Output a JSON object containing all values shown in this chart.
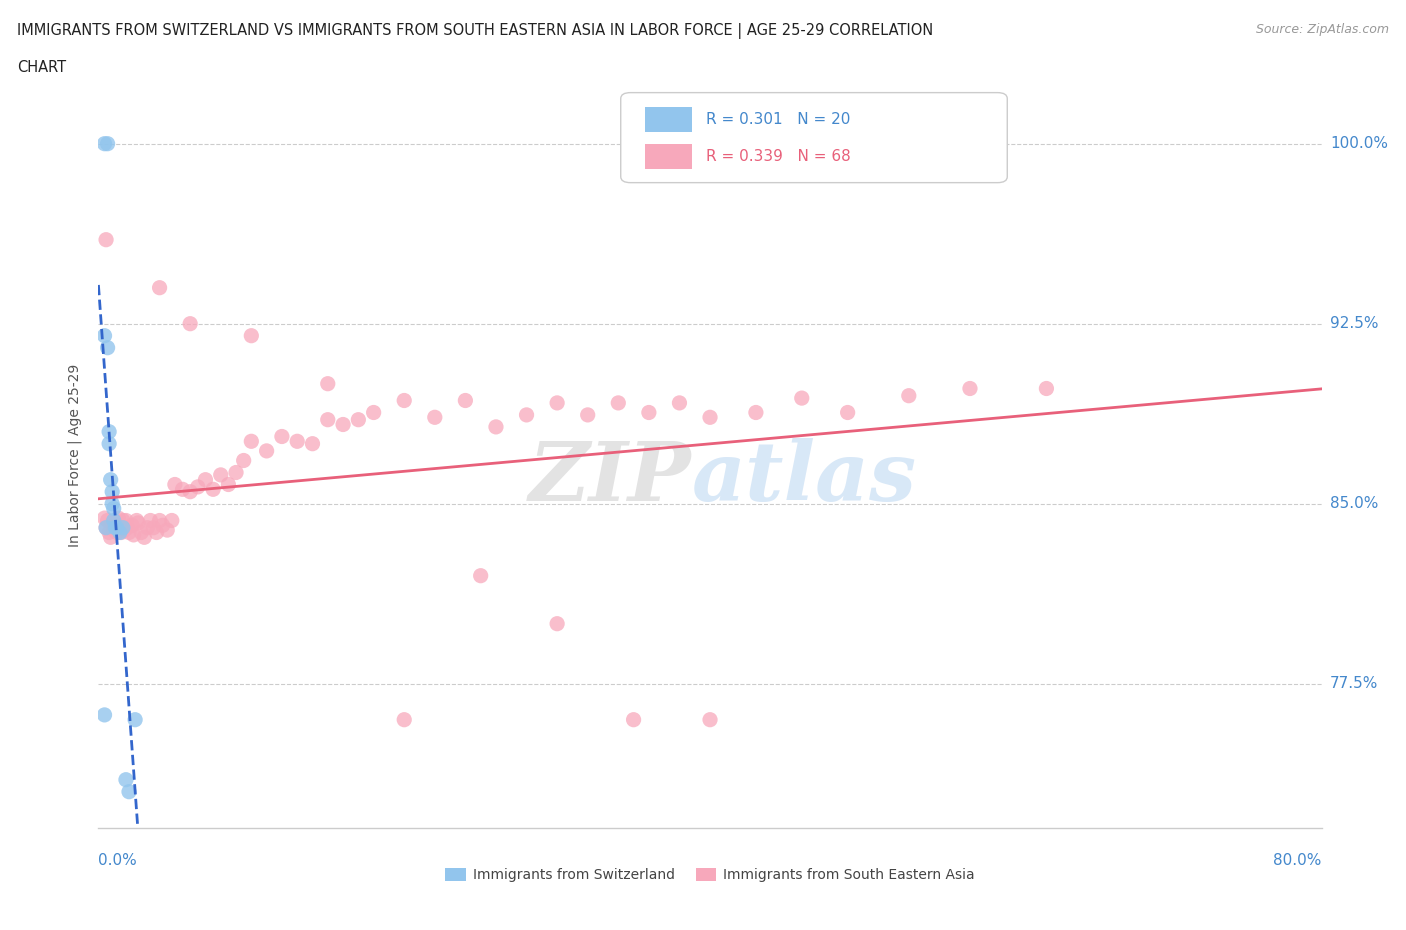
{
  "title_line1": "IMMIGRANTS FROM SWITZERLAND VS IMMIGRANTS FROM SOUTH EASTERN ASIA IN LABOR FORCE | AGE 25-29 CORRELATION",
  "title_line2": "CHART",
  "source_text": "Source: ZipAtlas.com",
  "xlabel_bottom_left": "0.0%",
  "xlabel_bottom_right": "80.0%",
  "ylabel_label": "In Labor Force | Age 25-29",
  "ytick_labels": [
    "100.0%",
    "92.5%",
    "85.0%",
    "77.5%"
  ],
  "ytick_values": [
    1.0,
    0.925,
    0.85,
    0.775
  ],
  "xmin": 0.0,
  "xmax": 0.8,
  "ymin": 0.715,
  "ymax": 1.025,
  "color_switzerland": "#92C5ED",
  "color_sea": "#F7A8BB",
  "color_trendline_switzerland": "#3366CC",
  "color_trendline_sea": "#E8607A",
  "R_switzerland": 0.301,
  "N_switzerland": 20,
  "R_sea": 0.339,
  "N_sea": 68,
  "legend_label_switzerland": "Immigrants from Switzerland",
  "legend_label_sea": "Immigrants from South Eastern Asia",
  "switzerland_x": [
    0.004,
    0.006,
    0.004,
    0.006,
    0.007,
    0.007,
    0.008,
    0.009,
    0.009,
    0.01,
    0.01,
    0.011,
    0.012,
    0.014,
    0.016,
    0.018,
    0.02,
    0.024,
    0.004,
    0.005
  ],
  "switzerland_y": [
    1.0,
    1.0,
    0.92,
    0.915,
    0.88,
    0.875,
    0.86,
    0.855,
    0.85,
    0.848,
    0.843,
    0.84,
    0.84,
    0.838,
    0.84,
    0.735,
    0.73,
    0.76,
    0.762,
    0.84
  ],
  "sea_x": [
    0.004,
    0.005,
    0.006,
    0.007,
    0.008,
    0.009,
    0.01,
    0.01,
    0.011,
    0.012,
    0.013,
    0.014,
    0.015,
    0.016,
    0.017,
    0.018,
    0.019,
    0.02,
    0.022,
    0.023,
    0.025,
    0.026,
    0.028,
    0.03,
    0.032,
    0.034,
    0.036,
    0.038,
    0.04,
    0.042,
    0.045,
    0.048,
    0.05,
    0.055,
    0.06,
    0.065,
    0.07,
    0.075,
    0.08,
    0.085,
    0.09,
    0.095,
    0.1,
    0.11,
    0.12,
    0.13,
    0.14,
    0.15,
    0.16,
    0.17,
    0.18,
    0.2,
    0.22,
    0.24,
    0.26,
    0.28,
    0.3,
    0.32,
    0.34,
    0.36,
    0.38,
    0.4,
    0.43,
    0.46,
    0.49,
    0.53,
    0.57,
    0.62
  ],
  "sea_y": [
    0.844,
    0.84,
    0.843,
    0.838,
    0.836,
    0.842,
    0.839,
    0.84,
    0.841,
    0.838,
    0.844,
    0.84,
    0.838,
    0.843,
    0.839,
    0.843,
    0.84,
    0.838,
    0.841,
    0.837,
    0.843,
    0.842,
    0.838,
    0.836,
    0.84,
    0.843,
    0.84,
    0.838,
    0.843,
    0.841,
    0.839,
    0.843,
    0.858,
    0.856,
    0.855,
    0.857,
    0.86,
    0.856,
    0.862,
    0.858,
    0.863,
    0.868,
    0.876,
    0.872,
    0.878,
    0.876,
    0.875,
    0.885,
    0.883,
    0.885,
    0.888,
    0.893,
    0.886,
    0.893,
    0.882,
    0.887,
    0.892,
    0.887,
    0.892,
    0.888,
    0.892,
    0.886,
    0.888,
    0.894,
    0.888,
    0.895,
    0.898,
    0.898
  ],
  "sea_outliers_x": [
    0.005,
    0.04,
    0.06,
    0.1,
    0.15,
    0.2,
    0.25,
    0.3,
    0.35,
    0.4
  ],
  "sea_outliers_y": [
    0.96,
    0.94,
    0.925,
    0.92,
    0.9,
    0.76,
    0.82,
    0.8,
    0.76,
    0.76
  ]
}
